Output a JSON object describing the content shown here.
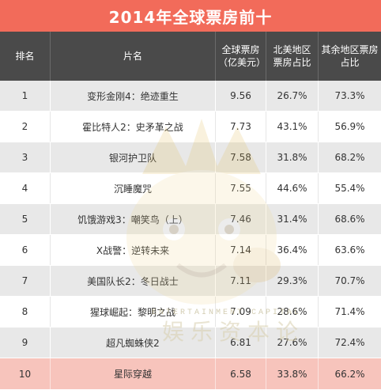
{
  "title": "2014年全球票房前十",
  "headers": {
    "rank": "排名",
    "film": "片名",
    "gross": "全球票房（亿美元）",
    "na_share": "北美地区票房占比",
    "other_share": "其余地区票房占比"
  },
  "rows": [
    {
      "rank": "1",
      "film": "变形金刚4：绝迹重生",
      "gross": "9.56",
      "na": "26.7%",
      "other": "73.3%"
    },
    {
      "rank": "2",
      "film": "霍比特人2：史矛革之战",
      "gross": "7.73",
      "na": "43.1%",
      "other": "56.9%"
    },
    {
      "rank": "3",
      "film": "银河护卫队",
      "gross": "7.58",
      "na": "31.8%",
      "other": "68.2%"
    },
    {
      "rank": "4",
      "film": "沉睡魔咒",
      "gross": "7.55",
      "na": "44.6%",
      "other": "55.4%"
    },
    {
      "rank": "5",
      "film": "饥饿游戏3：嘲笑鸟（上）",
      "gross": "7.46",
      "na": "31.4%",
      "other": "68.6%"
    },
    {
      "rank": "6",
      "film": "X战警：逆转未来",
      "gross": "7.14",
      "na": "36.4%",
      "other": "63.6%"
    },
    {
      "rank": "7",
      "film": "美国队长2：冬日战士",
      "gross": "7.11",
      "na": "29.3%",
      "other": "70.7%"
    },
    {
      "rank": "8",
      "film": "猩球崛起：黎明之战",
      "gross": "7.09",
      "na": "28.6%",
      "other": "71.4%"
    },
    {
      "rank": "9",
      "film": "超凡蜘蛛侠2",
      "gross": "6.81",
      "na": "27.6%",
      "other": "72.4%"
    },
    {
      "rank": "10",
      "film": "星际穿越",
      "gross": "6.58",
      "na": "33.8%",
      "other": "66.2%"
    }
  ],
  "watermark": {
    "en": "ENTERTAINMENT CAPITAL",
    "cn": "娱乐资本论",
    "icon": "crown-mascot-icon"
  },
  "colors": {
    "title_bg": "#f26b5a",
    "header_bg": "#4a4a4a",
    "row_alt": "#e8e8e8",
    "highlight_row": "#f7c4bc"
  }
}
